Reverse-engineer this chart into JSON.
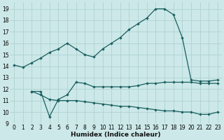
{
  "xlabel": "Humidex (Indice chaleur)",
  "bg_color": "#cce8e8",
  "grid_color": "#aacece",
  "line_color": "#1a5f5f",
  "xlim": [
    -0.5,
    23.5
  ],
  "ylim": [
    9.0,
    19.6
  ],
  "yticks": [
    9,
    10,
    11,
    12,
    13,
    14,
    15,
    16,
    17,
    18,
    19
  ],
  "xticks": [
    0,
    1,
    2,
    3,
    4,
    5,
    6,
    7,
    8,
    9,
    10,
    11,
    12,
    13,
    14,
    15,
    16,
    17,
    18,
    19,
    20,
    21,
    22,
    23
  ],
  "line1_x": [
    0,
    1,
    2,
    3,
    4,
    5,
    6,
    7,
    8,
    9,
    10,
    11,
    12,
    13,
    14,
    15,
    16,
    17,
    18,
    19,
    20,
    21,
    22,
    23
  ],
  "line1_y": [
    14.1,
    13.9,
    14.3,
    14.7,
    15.2,
    15.5,
    16.0,
    15.5,
    15.0,
    14.8,
    15.5,
    16.0,
    16.5,
    17.2,
    17.7,
    18.2,
    19.0,
    19.0,
    18.5,
    16.5,
    12.8,
    12.7,
    12.7,
    12.8
  ],
  "line2_x": [
    2,
    3,
    4,
    5,
    6,
    7,
    8,
    9,
    10,
    11,
    12,
    13,
    14,
    15,
    16,
    17,
    18,
    19,
    20,
    21,
    22,
    23
  ],
  "line2_y": [
    11.8,
    11.8,
    9.6,
    11.1,
    11.5,
    12.6,
    12.5,
    12.2,
    12.2,
    12.2,
    12.2,
    12.2,
    12.3,
    12.5,
    12.5,
    12.6,
    12.6,
    12.6,
    12.6,
    12.5,
    12.5,
    12.5
  ],
  "line3_x": [
    2,
    3,
    4,
    5,
    6,
    7,
    8,
    9,
    10,
    11,
    12,
    13,
    14,
    15,
    16,
    17,
    18,
    19,
    20,
    21,
    22,
    23
  ],
  "line3_y": [
    11.8,
    11.5,
    11.1,
    11.0,
    11.0,
    11.0,
    10.9,
    10.8,
    10.7,
    10.6,
    10.5,
    10.5,
    10.4,
    10.3,
    10.2,
    10.1,
    10.1,
    10.0,
    10.0,
    9.8,
    9.8,
    10.0
  ]
}
